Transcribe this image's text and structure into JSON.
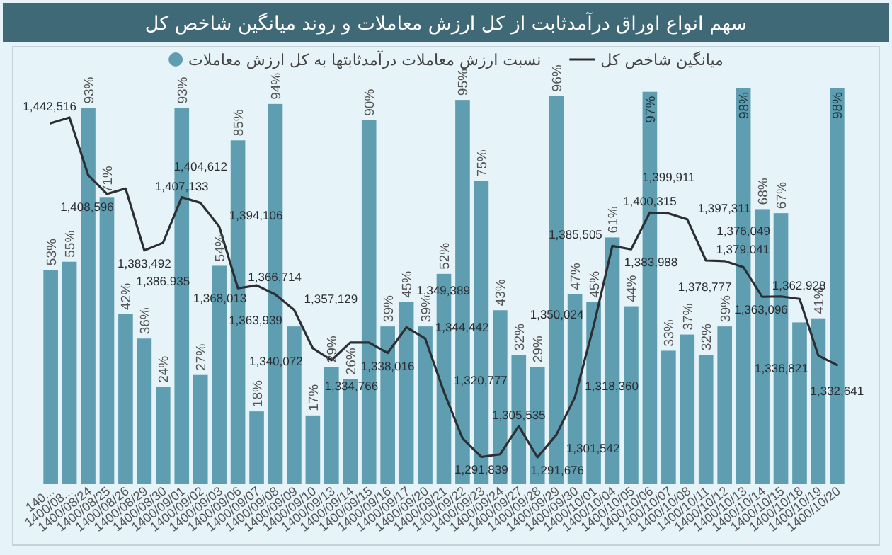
{
  "chart_data": {
    "type": "bar",
    "title": "سهم انواع اوراق درآمدثابت از کل ارزش معاملات و روند میانگین شاخص کل",
    "categories": [
      "140...",
      "1400/08...",
      "1400/08/24",
      "1400/08/25",
      "1400/08/26",
      "1400/08/29",
      "1400/08/30",
      "1400/09/01",
      "1400/09/02",
      "1400/09/03",
      "1400/09/06",
      "1400/09/07",
      "1400/09/08",
      "1400/09/09",
      "1400/09/10",
      "1400/09/13",
      "1400/09/14",
      "1400/09/15",
      "1400/09/16",
      "1400/09/17",
      "1400/09/20",
      "1400/09/21",
      "1400/09/22",
      "1400/09/23",
      "1400/09/24",
      "1400/09/27",
      "1400/09/28",
      "1400/09/29",
      "1400/09/30",
      "1400/10/01",
      "1400/10/04",
      "1400/10/05",
      "1400/10/06",
      "1400/10/07",
      "1400/10/08",
      "1400/10/11",
      "1400/10/12",
      "1400/10/13",
      "1400/10/14",
      "1400/10/15",
      "1400/10/18",
      "1400/10/19",
      "1400/10/20"
    ],
    "series": [
      {
        "name": "نسبت ارزش معاملات درآمدثابتها به کل ارزش معاملات",
        "color": "#5f9db0",
        "values": [
          53,
          55,
          93,
          71,
          42,
          36,
          24,
          93,
          27,
          54,
          85,
          18,
          94,
          39,
          17,
          29,
          26,
          90,
          39,
          45,
          39,
          52,
          95,
          75,
          43,
          32,
          29,
          96,
          47,
          45,
          61,
          44,
          97,
          33,
          37,
          32,
          39,
          98,
          68,
          67,
          40,
          41,
          98
        ],
        "value_labels": [
          "53%",
          "55%",
          "93%",
          "71%",
          "42%",
          "36%",
          "24%",
          "93%",
          "27%",
          "54%",
          "85%",
          "18%",
          "94%",
          null,
          "17%",
          "29%",
          "26%",
          "90%",
          "39%",
          "45%",
          "39%",
          "52%",
          "95%",
          "75%",
          "43%",
          "32%",
          "29%",
          "96%",
          "47%",
          "45%",
          "61%",
          "44%",
          "97%",
          "33%",
          "37%",
          "32%",
          "39%",
          "98%",
          "68%",
          "67%",
          null,
          "41%",
          "98%"
        ]
      },
      {
        "type": "line",
        "axis": "y2",
        "name": "میانگین شاخص کل",
        "color": "#2b2f33",
        "values": [
          1440000,
          1442516,
          1417000,
          1408596,
          1411000,
          1383492,
          1386935,
          1407133,
          1404612,
          1394106,
          1366714,
          1368013,
          1363939,
          1357129,
          1340072,
          1334766,
          1342600,
          1342600,
          1338016,
          1349389,
          1344442,
          1320777,
          1300000,
          1291839,
          1293000,
          1305535,
          1291676,
          1301542,
          1318360,
          1350024,
          1385505,
          1383988,
          1400315,
          1399911,
          1397311,
          1379041,
          1378777,
          1376049,
          1362928,
          1363096,
          1362000,
          1336821,
          1332641
        ],
        "value_labels": [
          null,
          "1,442,516",
          null,
          "1,408,596",
          null,
          "1,383,492",
          "1,386,935",
          "1,407,133",
          "1,404,612",
          "1,394,106",
          "1,366,714",
          "1,368,013",
          "1,363,939",
          "1,357,129",
          "1,340,072",
          "1,334,766",
          null,
          null,
          "1,338,016",
          "1,349,389",
          "1,344,442",
          "1,320,777",
          null,
          "1,291,839",
          null,
          "1,305,535",
          "1,291,676",
          "1,301,542",
          "1,318,360",
          "1,350,024",
          "1,385,505",
          "1,383,988",
          "1,400,315",
          "1,399,911",
          "1,397,311",
          "1,379,041",
          "1,378,777",
          "1,376,049",
          "1,362,928",
          "1,363,096",
          null,
          "1,336,821",
          "1,332,641"
        ]
      }
    ],
    "legend": "top",
    "grid": false
  }
}
